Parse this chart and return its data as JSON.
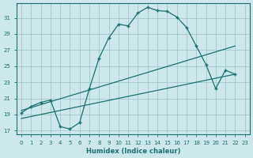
{
  "bg_color": "#cce8ea",
  "grid_color": "#a0c8cc",
  "line_color": "#1a7070",
  "xlabel": "Humidex (Indice chaleur)",
  "ylim": [
    16.5,
    32.8
  ],
  "xlim": [
    -0.5,
    23.5
  ],
  "yticks": [
    17,
    19,
    21,
    23,
    25,
    27,
    29,
    31
  ],
  "xticks": [
    0,
    1,
    2,
    3,
    4,
    5,
    6,
    7,
    8,
    9,
    10,
    11,
    12,
    13,
    14,
    15,
    16,
    17,
    18,
    19,
    20,
    21,
    22,
    23
  ],
  "curve_x": [
    0,
    1,
    2,
    3,
    4,
    5,
    6,
    7,
    8,
    9,
    10,
    11,
    12,
    13,
    14,
    15,
    16,
    17,
    18,
    19,
    20,
    21,
    22
  ],
  "curve_y": [
    19.2,
    20.0,
    20.5,
    20.8,
    17.5,
    17.2,
    18.0,
    22.2,
    26.0,
    28.5,
    30.2,
    30.0,
    31.6,
    32.3,
    31.9,
    31.8,
    31.1,
    29.8,
    27.5,
    25.2,
    22.2,
    24.5,
    24.0
  ],
  "line1_x": [
    0,
    22
  ],
  "line1_y": [
    19.5,
    27.5
  ],
  "line2_x": [
    0,
    22
  ],
  "line2_y": [
    18.5,
    24.0
  ]
}
